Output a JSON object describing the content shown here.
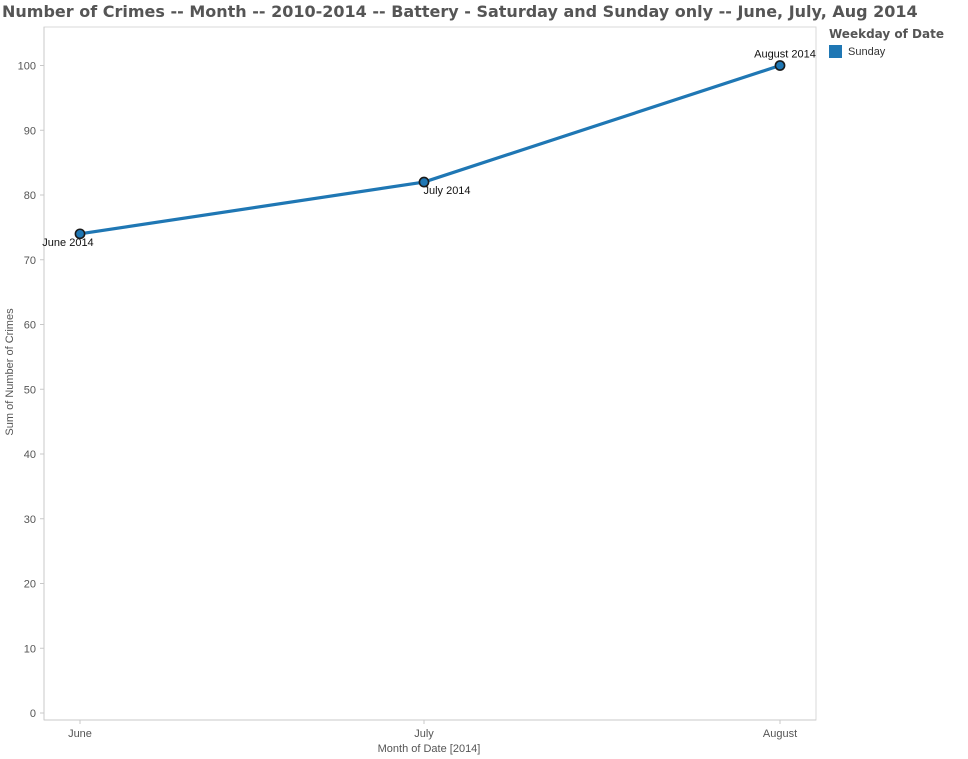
{
  "chart_data": {
    "type": "line",
    "title": "Number of Crimes -- Month -- 2010-2014 -- Battery - Saturday and Sunday only -- June, July, Aug 2014",
    "xlabel": "Month of Date [2014]",
    "ylabel": "Sum of Number of Crimes",
    "categories": [
      "June",
      "July",
      "August"
    ],
    "ylim": [
      0,
      100
    ],
    "yticks": [
      0,
      10,
      20,
      30,
      40,
      50,
      60,
      70,
      80,
      90,
      100
    ],
    "grid": false,
    "legend": {
      "title": "Weekday of Date",
      "placement": "top-right",
      "entries": [
        "Sunday"
      ]
    },
    "series": [
      {
        "name": "Sunday",
        "color": "#1f77b4",
        "values": [
          74,
          82,
          100
        ],
        "point_labels": [
          "June 2014",
          "July 2014",
          "August 2014"
        ]
      }
    ]
  }
}
